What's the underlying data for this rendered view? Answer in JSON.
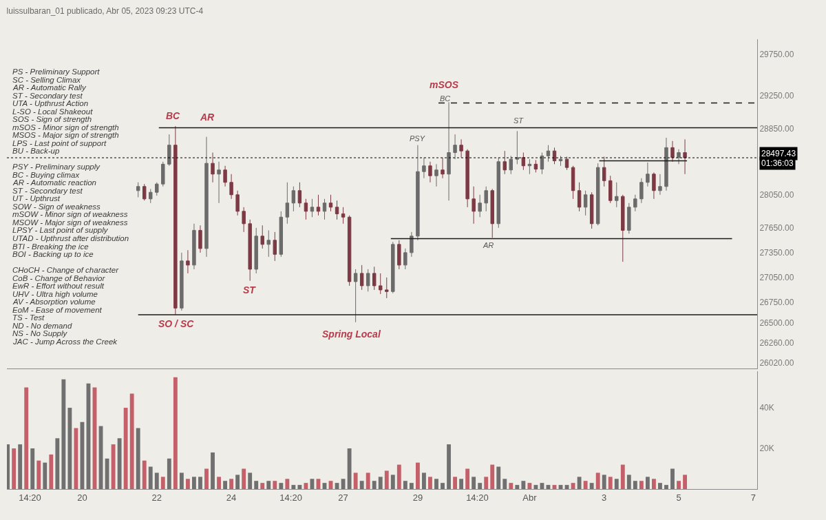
{
  "chart_data": [
    {
      "type": "candlestick",
      "title": "luissulbaran_01 publicado, Abr 05, 2023 09:23 UTC-4",
      "x": [
        "2023-03-21T12:00",
        "2023-03-21T16:00",
        "2023-03-21T20:00",
        "2023-03-22T00:00",
        "2023-03-22T04:00",
        "2023-03-22T08:00",
        "2023-03-22T12:00",
        "2023-03-22T16:00",
        "2023-03-22T20:00",
        "2023-03-23T00:00",
        "2023-03-23T04:00",
        "2023-03-23T08:00",
        "2023-03-23T12:00",
        "2023-03-23T16:00",
        "2023-03-23T20:00",
        "2023-03-24T00:00",
        "2023-03-24T04:00",
        "2023-03-24T08:00",
        "2023-03-24T12:00",
        "2023-03-24T16:00",
        "2023-03-24T20:00",
        "2023-03-25T00:00",
        "2023-03-25T04:00",
        "2023-03-25T08:00",
        "2023-03-25T12:00",
        "2023-03-25T16:00",
        "2023-03-25T20:00",
        "2023-03-26T00:00",
        "2023-03-26T04:00",
        "2023-03-26T08:00",
        "2023-03-26T12:00",
        "2023-03-26T16:00",
        "2023-03-26T20:00",
        "2023-03-27T00:00",
        "2023-03-27T04:00",
        "2023-03-27T08:00",
        "2023-03-27T12:00",
        "2023-03-27T16:00",
        "2023-03-27T20:00",
        "2023-03-28T00:00",
        "2023-03-28T04:00",
        "2023-03-28T08:00",
        "2023-03-28T12:00",
        "2023-03-28T16:00",
        "2023-03-28T20:00",
        "2023-03-29T00:00",
        "2023-03-29T04:00",
        "2023-03-29T08:00",
        "2023-03-29T12:00",
        "2023-03-29T16:00",
        "2023-03-29T20:00",
        "2023-03-30T00:00",
        "2023-03-30T04:00",
        "2023-03-30T08:00",
        "2023-03-30T12:00",
        "2023-03-30T16:00",
        "2023-03-30T20:00",
        "2023-03-31T00:00",
        "2023-03-31T04:00",
        "2023-03-31T08:00",
        "2023-03-31T12:00",
        "2023-03-31T16:00",
        "2023-03-31T20:00",
        "2023-04-01T00:00",
        "2023-04-01T04:00",
        "2023-04-01T08:00",
        "2023-04-01T12:00",
        "2023-04-01T16:00",
        "2023-04-01T20:00",
        "2023-04-02T00:00",
        "2023-04-02T04:00",
        "2023-04-02T08:00",
        "2023-04-02T12:00",
        "2023-04-02T16:00",
        "2023-04-02T20:00",
        "2023-04-03T00:00",
        "2023-04-03T04:00",
        "2023-04-03T08:00",
        "2023-04-03T12:00",
        "2023-04-03T16:00",
        "2023-04-03T20:00",
        "2023-04-04T00:00",
        "2023-04-04T04:00",
        "2023-04-04T08:00",
        "2023-04-04T12:00",
        "2023-04-04T16:00",
        "2023-04-04T20:00",
        "2023-04-05T00:00",
        "2023-04-05T04:00"
      ],
      "ohlc": [
        [
          28100,
          28200,
          28020,
          28150
        ],
        [
          28150,
          28180,
          27980,
          28000
        ],
        [
          28000,
          28120,
          27950,
          28080
        ],
        [
          28080,
          28200,
          28040,
          28180
        ],
        [
          28180,
          28450,
          28150,
          28420
        ],
        [
          28420,
          28780,
          28400,
          28650
        ],
        [
          28650,
          28880,
          26600,
          26680
        ],
        [
          26680,
          27350,
          26650,
          27250
        ],
        [
          27250,
          27380,
          27100,
          27200
        ],
        [
          27200,
          27700,
          27150,
          27620
        ],
        [
          27620,
          27680,
          27350,
          27400
        ],
        [
          27400,
          28750,
          27300,
          28430
        ],
        [
          28430,
          28560,
          28200,
          28300
        ],
        [
          28300,
          28450,
          27950,
          28350
        ],
        [
          28350,
          28400,
          28150,
          28200
        ],
        [
          28200,
          28300,
          28000,
          28050
        ],
        [
          28050,
          28100,
          27800,
          27850
        ],
        [
          27850,
          27900,
          27600,
          27700
        ],
        [
          27700,
          27750,
          27010,
          27150
        ],
        [
          27150,
          27650,
          27100,
          27550
        ],
        [
          27550,
          27680,
          27400,
          27450
        ],
        [
          27450,
          27620,
          27300,
          27500
        ],
        [
          27500,
          27600,
          27250,
          27330
        ],
        [
          27330,
          27850,
          27300,
          27780
        ],
        [
          27780,
          28200,
          27700,
          27950
        ],
        [
          27950,
          28150,
          27850,
          28100
        ],
        [
          28100,
          28200,
          27900,
          27950
        ],
        [
          27950,
          28000,
          27750,
          27850
        ],
        [
          27850,
          28000,
          27780,
          27900
        ],
        [
          27900,
          28050,
          27800,
          27850
        ],
        [
          27850,
          28000,
          27750,
          27950
        ],
        [
          27950,
          28050,
          27850,
          27900
        ],
        [
          27900,
          27980,
          27750,
          27820
        ],
        [
          27820,
          27900,
          27700,
          27780
        ],
        [
          27780,
          27800,
          26950,
          27000
        ],
        [
          27000,
          27150,
          26510,
          27100
        ],
        [
          27100,
          27200,
          26900,
          26950
        ],
        [
          26950,
          27150,
          26880,
          27100
        ],
        [
          27100,
          27180,
          26900,
          26950
        ],
        [
          26950,
          27100,
          26850,
          26900
        ],
        [
          26900,
          27050,
          26800,
          26880
        ],
        [
          26880,
          27480,
          26860,
          27450
        ],
        [
          27450,
          27500,
          27150,
          27200
        ],
        [
          27200,
          27400,
          27150,
          27350
        ],
        [
          27350,
          27600,
          27300,
          27550
        ],
        [
          27550,
          28650,
          27500,
          28330
        ],
        [
          28330,
          28500,
          28250,
          28400
        ],
        [
          28400,
          28450,
          28200,
          28280
        ],
        [
          28280,
          28420,
          28150,
          28350
        ],
        [
          28350,
          28500,
          28250,
          28300
        ],
        [
          28300,
          29170,
          27980,
          28560
        ],
        [
          28560,
          28780,
          28480,
          28650
        ],
        [
          28650,
          28720,
          28500,
          28580
        ],
        [
          28580,
          28600,
          27900,
          28000
        ],
        [
          28000,
          28150,
          27700,
          27850
        ],
        [
          27850,
          28050,
          27780,
          27950
        ],
        [
          27950,
          28150,
          27850,
          28100
        ],
        [
          28100,
          28120,
          27530,
          27700
        ],
        [
          27700,
          28500,
          27650,
          28450
        ],
        [
          28450,
          28580,
          28300,
          28350
        ],
        [
          28350,
          28520,
          28300,
          28480
        ],
        [
          28480,
          28820,
          28420,
          28500
        ],
        [
          28500,
          28560,
          28350,
          28400
        ],
        [
          28400,
          28480,
          28300,
          28420
        ],
        [
          28420,
          28470,
          28320,
          28360
        ],
        [
          28360,
          28560,
          28300,
          28520
        ],
        [
          28520,
          28650,
          28450,
          28580
        ],
        [
          28580,
          28620,
          28420,
          28460
        ],
        [
          28460,
          28520,
          28400,
          28480
        ],
        [
          28480,
          28510,
          28350,
          28380
        ],
        [
          28380,
          28400,
          28000,
          28100
        ],
        [
          28100,
          28200,
          27850,
          27900
        ],
        [
          27900,
          28100,
          27800,
          28050
        ],
        [
          28050,
          28080,
          27640,
          27700
        ],
        [
          27700,
          28430,
          27680,
          28380
        ],
        [
          28380,
          28510,
          28150,
          28220
        ],
        [
          28220,
          28280,
          27950,
          27980
        ],
        [
          27980,
          28200,
          27900,
          28030
        ],
        [
          28030,
          28050,
          27240,
          27620
        ],
        [
          27620,
          27950,
          27580,
          27900
        ],
        [
          27900,
          28050,
          27850,
          28000
        ],
        [
          28000,
          28250,
          27950,
          28200
        ],
        [
          28200,
          28440,
          28150,
          28300
        ],
        [
          28300,
          28320,
          28000,
          28100
        ],
        [
          28100,
          28300,
          28050,
          28150
        ],
        [
          28150,
          28740,
          28100,
          28620
        ],
        [
          28620,
          28700,
          28450,
          28500
        ],
        [
          28500,
          28600,
          28420,
          28560
        ],
        [
          28560,
          28720,
          28300,
          28497.43
        ]
      ],
      "colors": [
        "#6b6b6b",
        "#7d3a45",
        "#6b6b6b",
        "#6b6b6b",
        "#6b6b6b",
        "#6b6b6b",
        "#7d3a45",
        "#6b6b6b",
        "#7d3a45",
        "#6b6b6b",
        "#7d3a45",
        "#6b6b6b",
        "#7d3a45",
        "#6b6b6b",
        "#7d3a45",
        "#7d3a45",
        "#7d3a45",
        "#7d3a45",
        "#7d3a45",
        "#6b6b6b",
        "#7d3a45",
        "#6b6b6b",
        "#7d3a45",
        "#6b6b6b",
        "#6b6b6b",
        "#6b6b6b",
        "#7d3a45",
        "#7d3a45",
        "#6b6b6b",
        "#7d3a45",
        "#6b6b6b",
        "#7d3a45",
        "#7d3a45",
        "#7d3a45",
        "#7d3a45",
        "#6b6b6b",
        "#7d3a45",
        "#6b6b6b",
        "#7d3a45",
        "#7d3a45",
        "#7d3a45",
        "#6b6b6b",
        "#7d3a45",
        "#6b6b6b",
        "#6b6b6b",
        "#6b6b6b",
        "#6b6b6b",
        "#7d3a45",
        "#6b6b6b",
        "#7d3a45",
        "#6b6b6b",
        "#6b6b6b",
        "#7d3a45",
        "#7d3a45",
        "#7d3a45",
        "#6b6b6b",
        "#6b6b6b",
        "#7d3a45",
        "#6b6b6b",
        "#7d3a45",
        "#6b6b6b",
        "#6b6b6b",
        "#7d3a45",
        "#6b6b6b",
        "#7d3a45",
        "#6b6b6b",
        "#6b6b6b",
        "#7d3a45",
        "#6b6b6b",
        "#7d3a45",
        "#7d3a45",
        "#7d3a45",
        "#6b6b6b",
        "#7d3a45",
        "#6b6b6b",
        "#7d3a45",
        "#7d3a45",
        "#6b6b6b",
        "#7d3a45",
        "#6b6b6b",
        "#6b6b6b",
        "#6b6b6b",
        "#6b6b6b",
        "#7d3a45",
        "#6b6b6b",
        "#6b6b6b",
        "#7d3a45",
        "#6b6b6b",
        "#7d3a45"
      ],
      "series": [
        {
          "type": "line",
          "x": [
            "2023-03-22T01:20",
            "2023-04-07T02:30"
          ],
          "values": [
            28860,
            28860
          ],
          "color": "#1a1a1a",
          "line_style": "solid"
        },
        {
          "type": "line",
          "x": [
            "2023-03-21T12:00",
            "2023-04-07T02:30"
          ],
          "values": [
            26600,
            26600
          ],
          "color": "#1a1a1a",
          "line_style": "solid"
        },
        {
          "type": "line",
          "x": [
            "2023-03-28T06:40",
            "2023-04-06T10:20"
          ],
          "values": [
            27520,
            27520
          ],
          "color": "#1a1a1a",
          "line_style": "solid"
        },
        {
          "type": "line",
          "x": [
            "2023-03-29T13:20",
            "2023-04-07T02:30"
          ],
          "values": [
            29160,
            29160
          ],
          "color": "#1a1a1a",
          "line_style": "dashed"
        },
        {
          "type": "line",
          "x": [
            "2023-04-02T20:50",
            "2023-04-05T05:20"
          ],
          "values": [
            28460,
            28460
          ],
          "color": "#1a1a1a",
          "line_style": "solid"
        }
      ],
      "xlim": [
        "2023-03-17T23:30",
        "2023-04-07T02:30"
      ],
      "ylim": [
        25950,
        29930
      ],
      "yticks": [
        {
          "value": 26020,
          "label": "26020.00"
        },
        {
          "value": 26260,
          "label": "26260.00"
        },
        {
          "value": 26500,
          "label": "26500.00"
        },
        {
          "value": 26750,
          "label": "26750.00"
        },
        {
          "value": 27050,
          "label": "27050.00"
        },
        {
          "value": 27350,
          "label": "27350.00"
        },
        {
          "value": 27650,
          "label": "27650.00"
        },
        {
          "value": 28050,
          "label": "28050.00"
        },
        {
          "value": 28850,
          "label": "28850.00"
        },
        {
          "value": 29250,
          "label": "29250.00"
        },
        {
          "value": 29750,
          "label": "29750.00"
        }
      ],
      "tick_labels": "y",
      "grid": false,
      "ref_lines": [
        {
          "axis": "y",
          "value": 28497.43,
          "label": "28497.43",
          "color": "#000000"
        }
      ],
      "annotations": [
        "BC",
        "AR",
        "SO / SC",
        "ST",
        "Spring Local",
        "mSOS",
        "BC",
        "PSY",
        "ST",
        "AR",
        "PS - Preliminary Support\nSC - Selling Climax\nAR - Automatic Rally\nST - Secondary test\nUTA - Upthrust Action\nL-SO - Local Shakeout\nSOS - Sign of strength\nmSOS - Minor sign of strength\nMSOS - Major sign of strength\nLPS - Last point of support\nBU - Back-up",
        "PSY - Preliminary supply\nBC - Buying climax\nAR - Automatic reaction\nST - Secondary test\nUT - Upthrust\nSOW - Sign of weakness\nmSOW - Minor sign of weakness\nMSOW - Major sign of weakness\nLPSY - Last point of supply\nUTAD - Upthrust after distribution\nBTI - Breaking the ice\nBOI - Backing up to ice",
        "CHoCH - Change of character\nCoB - Change of Behavior\nEwR - Effort without result\nUHV - Ultra high volume\nAV - Absorption volume\nEoM - Ease of movement\nTS - Test\nND - No demand\nNS - No Supply\nJAC - Jump Across the Creek",
        "01:36:03"
      ]
    },
    {
      "type": "bar",
      "x": [
        "2023-03-18T00:00",
        "2023-03-18T04:00",
        "2023-03-18T08:00",
        "2023-03-18T12:00",
        "2023-03-18T16:00",
        "2023-03-18T20:00",
        "2023-03-19T00:00",
        "2023-03-19T04:00",
        "2023-03-19T08:00",
        "2023-03-19T12:00",
        "2023-03-19T16:00",
        "2023-03-19T20:00",
        "2023-03-20T00:00",
        "2023-03-20T04:00",
        "2023-03-20T08:00",
        "2023-03-20T12:00",
        "2023-03-20T16:00",
        "2023-03-20T20:00",
        "2023-03-21T00:00",
        "2023-03-21T04:00",
        "2023-03-21T08:00",
        "2023-03-21T12:00",
        "2023-03-21T16:00",
        "2023-03-21T20:00",
        "2023-03-22T00:00",
        "2023-03-22T04:00",
        "2023-03-22T08:00",
        "2023-03-22T12:00",
        "2023-03-22T16:00",
        "2023-03-22T20:00",
        "2023-03-23T00:00",
        "2023-03-23T04:00",
        "2023-03-23T08:00",
        "2023-03-23T12:00",
        "2023-03-23T16:00",
        "2023-03-23T20:00",
        "2023-03-24T00:00",
        "2023-03-24T04:00",
        "2023-03-24T08:00",
        "2023-03-24T12:00",
        "2023-03-24T16:00",
        "2023-03-24T20:00",
        "2023-03-25T00:00",
        "2023-03-25T04:00",
        "2023-03-25T08:00",
        "2023-03-25T12:00",
        "2023-03-25T16:00",
        "2023-03-25T20:00",
        "2023-03-26T00:00",
        "2023-03-26T04:00",
        "2023-03-26T08:00",
        "2023-03-26T12:00",
        "2023-03-26T16:00",
        "2023-03-26T20:00",
        "2023-03-27T00:00",
        "2023-03-27T04:00",
        "2023-03-27T08:00",
        "2023-03-27T12:00",
        "2023-03-27T16:00",
        "2023-03-27T20:00",
        "2023-03-28T00:00",
        "2023-03-28T04:00",
        "2023-03-28T08:00",
        "2023-03-28T12:00",
        "2023-03-28T16:00",
        "2023-03-28T20:00",
        "2023-03-29T00:00",
        "2023-03-29T04:00",
        "2023-03-29T08:00",
        "2023-03-29T12:00",
        "2023-03-29T16:00",
        "2023-03-29T20:00",
        "2023-03-30T00:00",
        "2023-03-30T04:00",
        "2023-03-30T08:00",
        "2023-03-30T12:00",
        "2023-03-30T16:00",
        "2023-03-30T20:00",
        "2023-03-31T00:00",
        "2023-03-31T04:00",
        "2023-03-31T08:00",
        "2023-03-31T12:00",
        "2023-03-31T16:00",
        "2023-03-31T20:00",
        "2023-04-01T00:00",
        "2023-04-01T04:00",
        "2023-04-01T08:00",
        "2023-04-01T12:00",
        "2023-04-01T16:00",
        "2023-04-01T20:00",
        "2023-04-02T00:00",
        "2023-04-02T04:00",
        "2023-04-02T08:00",
        "2023-04-02T12:00",
        "2023-04-02T16:00",
        "2023-04-02T20:00",
        "2023-04-03T00:00",
        "2023-04-03T04:00",
        "2023-04-03T08:00",
        "2023-04-03T12:00",
        "2023-04-03T16:00",
        "2023-04-03T20:00",
        "2023-04-04T00:00",
        "2023-04-04T04:00",
        "2023-04-04T08:00",
        "2023-04-04T12:00",
        "2023-04-04T16:00",
        "2023-04-04T20:00",
        "2023-04-05T00:00",
        "2023-04-05T04:00"
      ],
      "values": [
        22000,
        20000,
        22000,
        50000,
        20000,
        14000,
        13000,
        17000,
        25000,
        54000,
        40000,
        30000,
        33000,
        52000,
        50000,
        31000,
        15000,
        22000,
        25000,
        40000,
        47000,
        30000,
        14000,
        11000,
        8000,
        6000,
        15000,
        55000,
        8000,
        5000,
        6000,
        6000,
        10000,
        18000,
        6000,
        4000,
        5000,
        7000,
        10000,
        8000,
        4000,
        3000,
        4000,
        4000,
        3000,
        5000,
        2000,
        2000,
        3000,
        5000,
        5000,
        3000,
        4000,
        3000,
        5000,
        20000,
        8000,
        4000,
        8000,
        4000,
        6000,
        9000,
        7000,
        12000,
        4000,
        3000,
        13000,
        8000,
        6000,
        5000,
        3000,
        22000,
        6000,
        5000,
        10000,
        6000,
        3000,
        6000,
        12000,
        11000,
        5000,
        3000,
        2000,
        4000,
        3000,
        2000,
        3000,
        2000,
        2000,
        2000,
        2000,
        3000,
        6000,
        4000,
        3000,
        8000,
        7000,
        6000,
        5000,
        12000,
        7000,
        4000,
        4000,
        6000,
        5000,
        3000,
        2000,
        10000,
        4000,
        7000
      ],
      "colors": [
        "#707070",
        "#c4606a",
        "#707070",
        "#c4606a",
        "#707070",
        "#c4606a",
        "#707070",
        "#c4606a",
        "#707070",
        "#707070",
        "#707070",
        "#c4606a",
        "#707070",
        "#707070",
        "#c4606a",
        "#707070",
        "#707070",
        "#c4606a",
        "#707070",
        "#c4606a",
        "#c4606a",
        "#707070",
        "#c4606a",
        "#707070",
        "#707070",
        "#c4606a",
        "#707070",
        "#c4606a",
        "#707070",
        "#c4606a",
        "#707070",
        "#707070",
        "#c4606a",
        "#707070",
        "#c4606a",
        "#707070",
        "#c4606a",
        "#707070",
        "#c4606a",
        "#707070",
        "#707070",
        "#c4606a",
        "#707070",
        "#c4606a",
        "#707070",
        "#c4606a",
        "#707070",
        "#707070",
        "#c4606a",
        "#707070",
        "#c4606a",
        "#707070",
        "#c4606a",
        "#707070",
        "#707070",
        "#707070",
        "#c4606a",
        "#707070",
        "#c4606a",
        "#707070",
        "#707070",
        "#c4606a",
        "#707070",
        "#c4606a",
        "#707070",
        "#707070",
        "#c4606a",
        "#707070",
        "#c4606a",
        "#707070",
        "#707070",
        "#707070",
        "#c4606a",
        "#707070",
        "#c4606a",
        "#707070",
        "#707070",
        "#c4606a",
        "#c4606a",
        "#707070",
        "#707070",
        "#c4606a",
        "#707070",
        "#707070",
        "#c4606a",
        "#707070",
        "#707070",
        "#707070",
        "#c4606a",
        "#707070",
        "#707070",
        "#c4606a",
        "#707070",
        "#c4606a",
        "#707070",
        "#c4606a",
        "#707070",
        "#c4606a",
        "#707070",
        "#c4606a",
        "#707070",
        "#707070",
        "#c4606a",
        "#707070",
        "#c4606a",
        "#707070",
        "#707070",
        "#707070",
        "#c4606a",
        "#c4606a"
      ],
      "xlim": [
        "2023-03-17T23:30",
        "2023-04-07T02:30"
      ],
      "ylim": [
        0,
        58000
      ],
      "yticks": [
        {
          "value": 20000,
          "label": "20K"
        },
        {
          "value": 40000,
          "label": "40K"
        }
      ],
      "xticks": [
        {
          "value": "2023-03-18T14:20",
          "label": "14:20"
        },
        {
          "value": "2023-03-20",
          "label": "20"
        },
        {
          "value": "2023-03-22",
          "label": "22"
        },
        {
          "value": "2023-03-24",
          "label": "24"
        },
        {
          "value": "2023-03-25T14:20",
          "label": "14:20"
        },
        {
          "value": "2023-03-27",
          "label": "27"
        },
        {
          "value": "2023-03-29",
          "label": "29"
        },
        {
          "value": "2023-03-30T14:20",
          "label": "14:20"
        },
        {
          "value": "2023-04-01",
          "label": "Abr"
        },
        {
          "value": "2023-04-03",
          "label": "3"
        },
        {
          "value": "2023-04-05",
          "label": "5"
        },
        {
          "value": "2023-04-07",
          "label": "7"
        }
      ],
      "grid": false
    }
  ]
}
